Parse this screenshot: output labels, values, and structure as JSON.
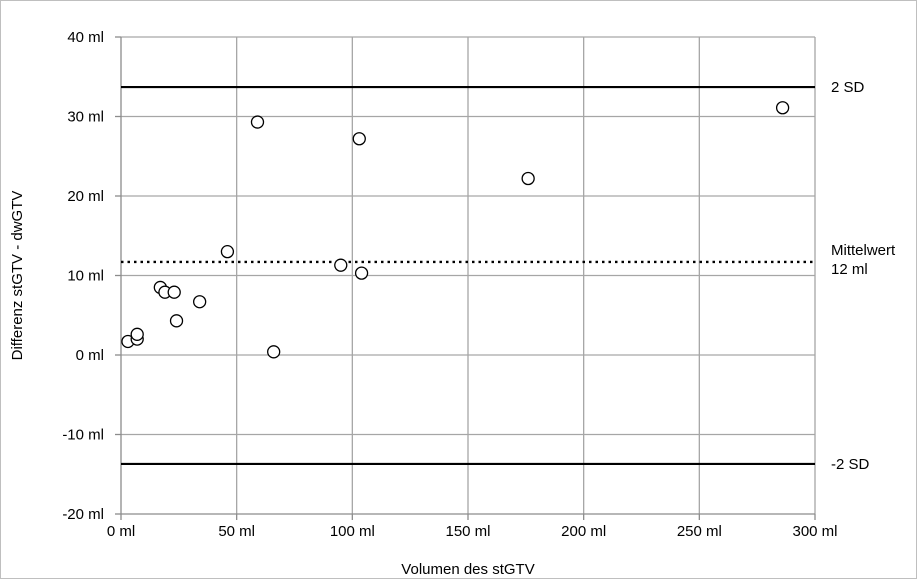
{
  "chart_data": {
    "type": "scatter",
    "xlabel": "Volumen des stGTV",
    "ylabel": "Differenz stGTV - dwGTV",
    "xlim": [
      0,
      300
    ],
    "ylim": [
      -20,
      40
    ],
    "x_ticks": [
      0,
      50,
      100,
      150,
      200,
      250,
      300
    ],
    "y_ticks": [
      -20,
      -10,
      0,
      10,
      20,
      30,
      40
    ],
    "x_tick_labels": [
      "0 ml",
      "50 ml",
      "100 ml",
      "150 ml",
      "200 ml",
      "250 ml",
      "300 ml"
    ],
    "y_tick_labels": [
      "-20 ml",
      "-10 ml",
      "0 ml",
      "10 ml",
      "20 ml",
      "30 ml",
      "40 ml"
    ],
    "grid": true,
    "points": [
      {
        "x": 3,
        "y": 1.7
      },
      {
        "x": 7,
        "y": 2.0
      },
      {
        "x": 7,
        "y": 2.6
      },
      {
        "x": 17,
        "y": 8.5
      },
      {
        "x": 19,
        "y": 7.9
      },
      {
        "x": 23,
        "y": 7.9
      },
      {
        "x": 24,
        "y": 4.3
      },
      {
        "x": 34,
        "y": 6.7
      },
      {
        "x": 46,
        "y": 13.0
      },
      {
        "x": 59,
        "y": 29.3
      },
      {
        "x": 66,
        "y": 0.4
      },
      {
        "x": 95,
        "y": 11.3
      },
      {
        "x": 103,
        "y": 27.2
      },
      {
        "x": 104,
        "y": 10.3
      },
      {
        "x": 176,
        "y": 22.2
      },
      {
        "x": 286,
        "y": 31.1
      }
    ],
    "reference_lines": [
      {
        "y": 33.7,
        "style": "solid",
        "labels": [
          "2 SD"
        ]
      },
      {
        "y": 11.7,
        "style": "dotted",
        "labels": [
          "Mittelwert",
          "12 ml"
        ]
      },
      {
        "y": -13.7,
        "style": "solid",
        "labels": [
          "-2 SD"
        ]
      }
    ]
  }
}
